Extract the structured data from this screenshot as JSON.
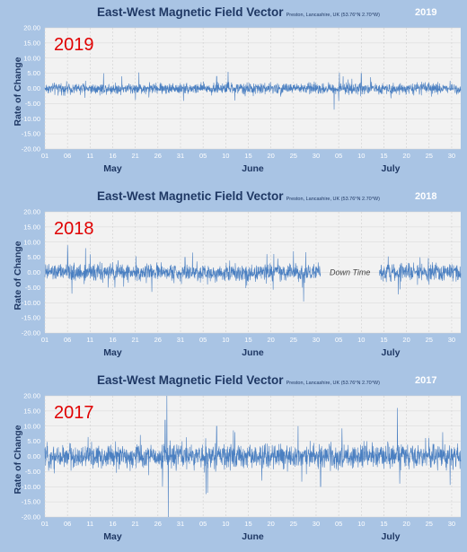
{
  "chart_data": [
    {
      "type": "line",
      "title": "East-West Magnetic Field Vector",
      "subtitle": "Preston, Lancashire, UK  (53.76°N 2.70°W)",
      "year_label": "2019",
      "big_label": "2019",
      "ylabel": "Rate of Change",
      "ylim": [
        -20,
        20
      ],
      "yticks": [
        "20.00",
        "15.00",
        "10.00",
        "5.00",
        "0.00",
        "-5.00",
        "-10.00",
        "-15.00",
        "-20.00"
      ],
      "xlim": [
        0,
        92
      ],
      "xticks": [
        "01",
        "06",
        "11",
        "16",
        "21",
        "26",
        "31",
        "05",
        "10",
        "15",
        "20",
        "25",
        "30",
        "05",
        "10",
        "15",
        "20",
        "25",
        "30"
      ],
      "months": [
        "May",
        "June",
        "July"
      ],
      "noise": 1.1,
      "gaps": [],
      "annotation": "",
      "spikes": [
        [
          9,
          2.5
        ],
        [
          13,
          5
        ],
        [
          17,
          4
        ],
        [
          23,
          -3
        ],
        [
          38,
          4
        ],
        [
          42,
          -4
        ],
        [
          64,
          -7
        ],
        [
          66,
          4
        ],
        [
          70,
          5
        ]
      ]
    },
    {
      "type": "line",
      "title": "East-West Magnetic Field Vector",
      "subtitle": "Preston, Lancashire, UK  (53.76°N 2.70°W)",
      "year_label": "2018",
      "big_label": "2018",
      "ylabel": "Rate of Change",
      "ylim": [
        -20,
        20
      ],
      "yticks": [
        "20.00",
        "15.00",
        "10.00",
        "5.00",
        "0.00",
        "-5.00",
        "-10.00",
        "-15.00",
        "-20.00"
      ],
      "xlim": [
        0,
        92
      ],
      "xticks": [
        "01",
        "06",
        "11",
        "16",
        "21",
        "26",
        "31",
        "05",
        "10",
        "15",
        "20",
        "25",
        "30",
        "05",
        "10",
        "15",
        "20",
        "25",
        "30"
      ],
      "months": [
        "May",
        "June",
        "July"
      ],
      "noise": 1.7,
      "gaps": [
        [
          61,
          74
        ]
      ],
      "annotation": "Down Time",
      "spikes": [
        [
          5,
          9
        ],
        [
          6,
          -7
        ],
        [
          9,
          8
        ],
        [
          10,
          6
        ],
        [
          14,
          -5
        ],
        [
          31,
          5
        ],
        [
          36,
          -4
        ],
        [
          55,
          7
        ],
        [
          57,
          -5
        ],
        [
          83,
          5
        ],
        [
          85,
          -4
        ]
      ]
    },
    {
      "type": "line",
      "title": "East-West Magnetic Field Vector",
      "subtitle": "Preston, Lancashire, UK  (53.76°N 2.70°W)",
      "year_label": "2017",
      "big_label": "2017",
      "ylabel": "Rate of Change",
      "ylim": [
        -20,
        20
      ],
      "yticks": [
        "20.00",
        "15.00",
        "10.00",
        "5.00",
        "0.00",
        "-5.00",
        "-10.00",
        "-15.00",
        "-20.00"
      ],
      "xlim": [
        0,
        92
      ],
      "xticks": [
        "01",
        "06",
        "11",
        "16",
        "21",
        "26",
        "31",
        "05",
        "10",
        "15",
        "20",
        "25",
        "30",
        "05",
        "10",
        "15",
        "20",
        "25",
        "30"
      ],
      "months": [
        "May",
        "June",
        "July"
      ],
      "noise": 2.4,
      "gaps": [],
      "annotation": "",
      "spikes": [
        [
          27,
          20
        ],
        [
          27.3,
          -20
        ],
        [
          26.6,
          12
        ],
        [
          26,
          -10
        ],
        [
          36,
          -12
        ],
        [
          38,
          10
        ],
        [
          42,
          8
        ],
        [
          48,
          -8
        ],
        [
          56,
          10
        ],
        [
          61,
          -10
        ],
        [
          78,
          16
        ],
        [
          78.5,
          -9
        ],
        [
          88,
          8
        ]
      ]
    }
  ]
}
